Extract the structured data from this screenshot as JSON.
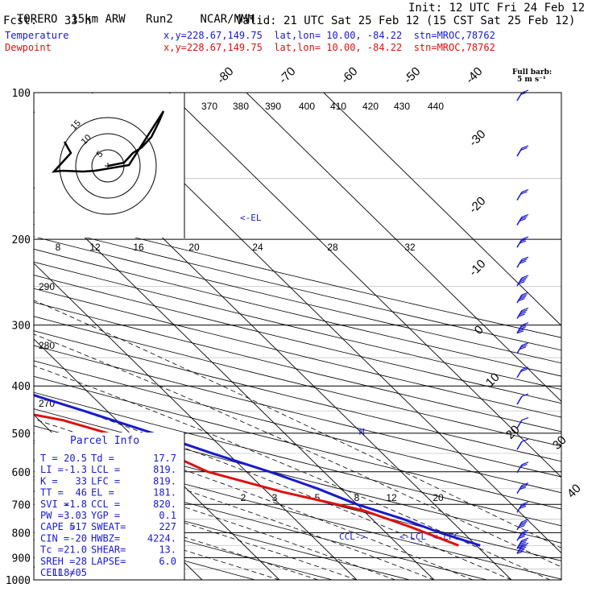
{
  "header": {
    "model": "TORERO",
    "resolution": "15km ARW",
    "run": "Run2",
    "org": "NCAR/MMM",
    "init": "Init: 12 UTC Fri 24 Feb 12",
    "fcst_label": "Fcst:",
    "fcst_hours": "33 h",
    "valid": "Valid: 21 UTC Sat 25 Feb 12 (15 CST Sat 25 Feb 12)"
  },
  "legend": {
    "temperature": {
      "name": "Temperature",
      "xy": "x,y=228.67,149.75",
      "latlon": "lat,lon= 10.00, -84.22",
      "stn": "stn=MROC,78762",
      "color": "#1a1acc"
    },
    "dewpoint": {
      "name": "Dewpoint",
      "xy": "x,y=228.67,149.75",
      "latlon": "lat,lon= 10.00, -84.22",
      "stn": "stn=MROC,78762",
      "color": "#dd1111"
    }
  },
  "barb_key": {
    "title": "Full barb:",
    "value": "5 m s⁻¹"
  },
  "hodograph": {
    "units": "kts",
    "ring_labels": [
      "5",
      "10",
      "15"
    ]
  },
  "parcel_info": {
    "title": "Parcel Info",
    "rows": [
      [
        "T  =",
        "20.5",
        "Td =",
        "17.7"
      ],
      [
        "LI =",
        "-1.3",
        "LCL =",
        "819."
      ],
      [
        "K  =",
        "33",
        "LFC =",
        "819."
      ],
      [
        "TT =",
        "46",
        "EL =",
        "181."
      ],
      [
        "SVI =",
        "-1.8",
        "CCL =",
        "820."
      ],
      [
        "PW =",
        "3.03",
        "YGP =",
        "0.1"
      ],
      [
        "CAPE =",
        "517",
        "SWEAT=",
        "227"
      ],
      [
        "CIN =",
        "-20",
        "HWBZ=",
        "4224."
      ],
      [
        "Tc =",
        "21.0",
        "SHEAR=",
        "13."
      ],
      [
        "SREH =",
        "28",
        "LAPSE=",
        "6.0"
      ],
      [
        "CELL =",
        "118/05",
        "",
        ""
      ]
    ]
  },
  "annotations": {
    "el": "<-EL",
    "ccl": "CCL->",
    "lcl": "<-LCL",
    "lfc": "<-LFC",
    "m": "M"
  },
  "chart_data": {
    "type": "line",
    "ylabel_levels": [
      100,
      200,
      300,
      400,
      500,
      600,
      700,
      800,
      900,
      1000
    ],
    "y_axis": "pressure (hPa), log scale, top=100 bottom=1000",
    "isotherm_labels": [
      "-80",
      "-70",
      "-60",
      "-50",
      "-40",
      "-30",
      "-20",
      "-10",
      "0",
      "10",
      "20",
      "30",
      "40"
    ],
    "theta_labels_top": [
      "370",
      "380",
      "390",
      "400",
      "410",
      "420",
      "430",
      "440"
    ],
    "theta_labels_left": [
      "290",
      "280",
      "270"
    ],
    "mixing_ratio_labels_upper": [
      "8",
      "12",
      "16",
      "20",
      "24",
      "28",
      "32"
    ],
    "mixing_ratio_labels_lower": [
      "2",
      "3",
      "5",
      "8",
      "12",
      "20"
    ],
    "series": [
      {
        "name": "Temperature",
        "color": "#1a1acc",
        "points": [
          {
            "p": 100,
            "t": -82
          },
          {
            "p": 130,
            "t": -72
          },
          {
            "p": 170,
            "t": -64
          },
          {
            "p": 200,
            "t": -58
          },
          {
            "p": 250,
            "t": -47
          },
          {
            "p": 300,
            "t": -37
          },
          {
            "p": 350,
            "t": -28
          },
          {
            "p": 400,
            "t": -20
          },
          {
            "p": 450,
            "t": -13
          },
          {
            "p": 500,
            "t": -7
          },
          {
            "p": 550,
            "t": -2
          },
          {
            "p": 600,
            "t": 3
          },
          {
            "p": 650,
            "t": 7
          },
          {
            "p": 700,
            "t": 10
          },
          {
            "p": 750,
            "t": 14
          },
          {
            "p": 800,
            "t": 17
          },
          {
            "p": 850,
            "t": 20.5
          }
        ]
      },
      {
        "name": "Dewpoint",
        "color": "#dd1111",
        "points": [
          {
            "p": 100,
            "t": -91
          },
          {
            "p": 130,
            "t": -84
          },
          {
            "p": 170,
            "t": -78
          },
          {
            "p": 200,
            "t": -72
          },
          {
            "p": 250,
            "t": -62
          },
          {
            "p": 280,
            "t": -55
          },
          {
            "p": 320,
            "t": -48
          },
          {
            "p": 370,
            "t": -42
          },
          {
            "p": 420,
            "t": -30
          },
          {
            "p": 470,
            "t": -17
          },
          {
            "p": 530,
            "t": -9
          },
          {
            "p": 600,
            "t": -5
          },
          {
            "p": 660,
            "t": 2
          },
          {
            "p": 720,
            "t": 10
          },
          {
            "p": 780,
            "t": 14
          },
          {
            "p": 850,
            "t": 17.7
          }
        ]
      }
    ],
    "hodograph_trace": [
      {
        "u": 0,
        "v": 0
      },
      {
        "u": 4,
        "v": 0
      },
      {
        "u": 8,
        "v": 1
      },
      {
        "u": 11,
        "v": 3
      },
      {
        "u": 13,
        "v": 7
      },
      {
        "u": 15,
        "v": 13
      },
      {
        "u": 16,
        "v": 18
      },
      {
        "u": -3,
        "v": -3
      },
      {
        "u": -6,
        "v": -2
      },
      {
        "u": -1,
        "v": 0
      },
      {
        "u": -11,
        "v": 2
      },
      {
        "u": -14,
        "v": 4
      },
      {
        "u": -12,
        "v": 8
      },
      {
        "u": -10,
        "v": 10
      }
    ],
    "wind_barbs": [
      {
        "p": 100,
        "spd": 10
      },
      {
        "p": 130,
        "spd": 10
      },
      {
        "p": 160,
        "spd": 10
      },
      {
        "p": 180,
        "spd": 15
      },
      {
        "p": 200,
        "spd": 15
      },
      {
        "p": 220,
        "spd": 15
      },
      {
        "p": 240,
        "spd": 20
      },
      {
        "p": 260,
        "spd": 20
      },
      {
        "p": 280,
        "spd": 20
      },
      {
        "p": 300,
        "spd": 25
      },
      {
        "p": 330,
        "spd": 15
      },
      {
        "p": 370,
        "spd": 10
      },
      {
        "p": 420,
        "spd": 5
      },
      {
        "p": 470,
        "spd": 5
      },
      {
        "p": 520,
        "spd": 5
      },
      {
        "p": 580,
        "spd": 10
      },
      {
        "p": 640,
        "spd": 15
      },
      {
        "p": 700,
        "spd": 15
      },
      {
        "p": 760,
        "spd": 20
      },
      {
        "p": 800,
        "spd": 20
      },
      {
        "p": 830,
        "spd": 25
      },
      {
        "p": 850,
        "spd": 25
      }
    ]
  }
}
